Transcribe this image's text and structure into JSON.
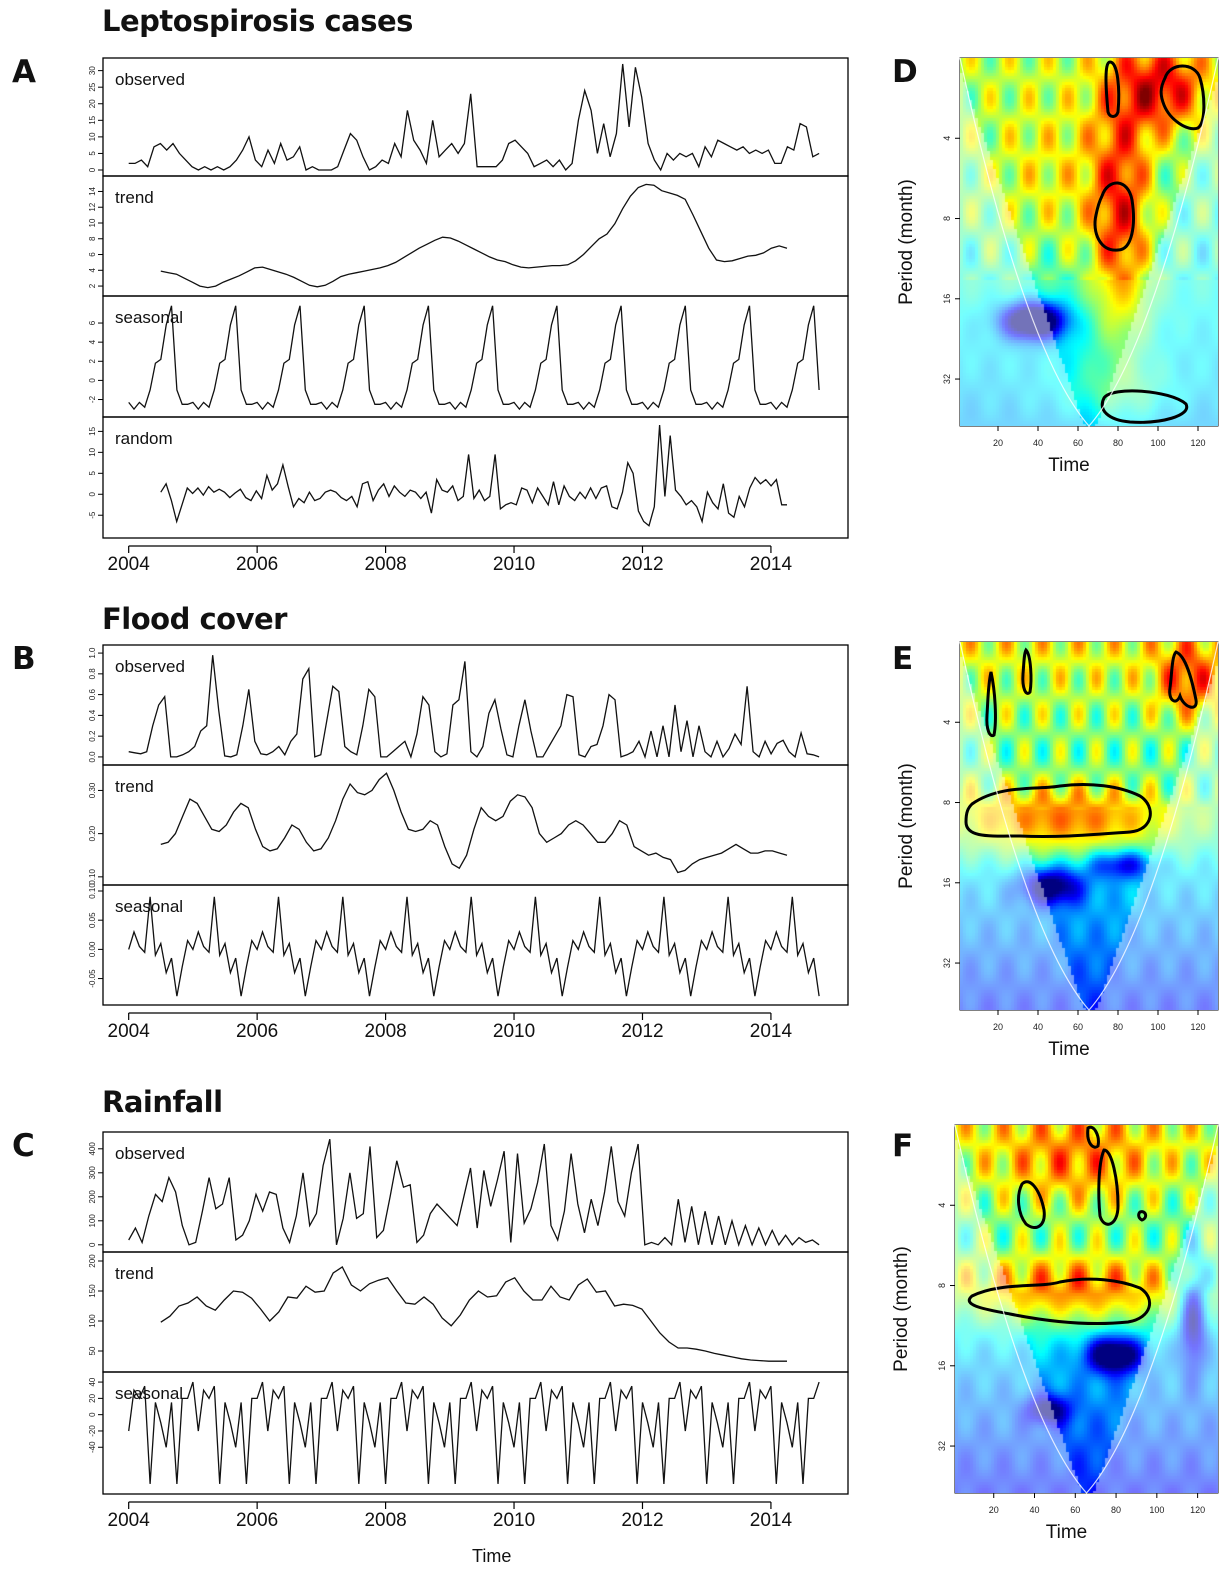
{
  "labels": {
    "A": "A",
    "B": "B",
    "C": "C",
    "D": "D",
    "E": "E",
    "F": "F"
  },
  "titles": {
    "A": "Leptospirosis cases",
    "B": "Flood cover",
    "C": "Rainfall"
  },
  "decomp_xlabel": "Time",
  "wavelet_axes": {
    "xlabel": "Time",
    "ylabel": "Period (month)"
  },
  "chart_data": [
    {
      "id": "A",
      "type": "line",
      "title": "Leptospirosis cases",
      "xlabel": "Time",
      "x_ticks": [
        "2004",
        "2006",
        "2008",
        "2010",
        "2012",
        "2014"
      ],
      "x_start": 2004.0,
      "x_end": 2014.75,
      "xlim": [
        2003.6,
        2015.2
      ],
      "panels": [
        {
          "name": "observed",
          "ylim": [
            0,
            32
          ],
          "y_ticks": [
            "0",
            "5",
            "10",
            "15",
            "20",
            "25",
            "30"
          ],
          "values": [
            2,
            2,
            3,
            1,
            7,
            8,
            6,
            8,
            5,
            3,
            1,
            0,
            1,
            0,
            1,
            0,
            1,
            3,
            6,
            10,
            3,
            1,
            6,
            2,
            8,
            3,
            4,
            7,
            0,
            1,
            0,
            0,
            0,
            1,
            6,
            11,
            9,
            4,
            0,
            1,
            3,
            2,
            8,
            4,
            18,
            9,
            6,
            2,
            15,
            4,
            6,
            8,
            5,
            8,
            23,
            1,
            1,
            1,
            1,
            3,
            8,
            9,
            7,
            5,
            1,
            2,
            3,
            1,
            3,
            0,
            2,
            15,
            24,
            18,
            5,
            14,
            4,
            11,
            32,
            13,
            31,
            22,
            8,
            3,
            0,
            5,
            3,
            5,
            4,
            5,
            1,
            7,
            4,
            9,
            8,
            7,
            6,
            7,
            5,
            6,
            5,
            6,
            2,
            2,
            7,
            6,
            14,
            13,
            4,
            5
          ]
        },
        {
          "name": "trend",
          "ylim": [
            1.5,
            15.2
          ],
          "y_ticks": [
            "2",
            "4",
            "6",
            "8",
            "10",
            "12",
            "14"
          ],
          "values": [
            3.9,
            3.7,
            3.5,
            3.0,
            2.5,
            2.0,
            1.8,
            2.0,
            2.5,
            2.9,
            3.3,
            3.8,
            4.3,
            4.4,
            4.1,
            3.8,
            3.5,
            3.1,
            2.6,
            2.1,
            1.9,
            2.1,
            2.6,
            3.2,
            3.5,
            3.7,
            3.9,
            4.1,
            4.3,
            4.6,
            5.0,
            5.6,
            6.2,
            6.8,
            7.3,
            7.8,
            8.2,
            8.1,
            7.7,
            7.2,
            6.7,
            6.2,
            5.7,
            5.3,
            5.1,
            4.7,
            4.4,
            4.3,
            4.4,
            4.5,
            4.6,
            4.6,
            4.7,
            5.2,
            6.0,
            7.0,
            8.0,
            8.6,
            9.9,
            11.8,
            13.4,
            14.5,
            14.9,
            14.8,
            14.1,
            13.8,
            13.5,
            13.0,
            11.0,
            8.9,
            6.8,
            5.3,
            5.1,
            5.2,
            5.5,
            5.8,
            5.9,
            6.2,
            6.8,
            7.1,
            6.8
          ]
        },
        {
          "name": "seasonal",
          "ylim": [
            -3.2,
            8.2
          ],
          "y_ticks": [
            "-2",
            "0",
            "2",
            "4",
            "6"
          ],
          "values": [
            -2.3,
            -3.0,
            -2.3,
            -2.8,
            -1.0,
            1.8,
            2.2,
            5.8,
            7.8,
            -1.0,
            -2.5,
            -2.5
          ]
        },
        {
          "name": "random",
          "ylim": [
            -9,
            17
          ],
          "y_ticks": [
            "-5",
            "0",
            "5",
            "10",
            "15"
          ],
          "values": [
            0.5,
            2.5,
            -1.5,
            -6.5,
            -2.5,
            1.5,
            0.2,
            1.5,
            -0.2,
            1.8,
            0.5,
            1.2,
            0.5,
            -0.8,
            0.3,
            1.2,
            -0.8,
            -1.5,
            0.8,
            -1.0,
            4.5,
            1.0,
            2.5,
            7.0,
            1.8,
            -3.0,
            -1.0,
            -2.0,
            0.5,
            -1.5,
            -1.0,
            0.5,
            1.0,
            0.5,
            -0.8,
            -1.5,
            -0.5,
            -3.0,
            2.5,
            3.0,
            -1.5,
            1.0,
            2.5,
            -0.5,
            2.0,
            0.5,
            -0.5,
            1.0,
            0.5,
            -1.0,
            0.5,
            -4.5,
            3.5,
            1.0,
            0.5,
            2.0,
            -1.5,
            -0.5,
            9.5,
            -1.0,
            1.0,
            -1.5,
            -0.5,
            9.5,
            -3.5,
            -2.5,
            -2.0,
            -2.5,
            1.5,
            1.0,
            -2.0,
            1.5,
            -0.5,
            -2.5,
            3.0,
            -2.5,
            2.0,
            -0.5,
            -1.5,
            0.5,
            -1.0,
            1.5,
            -1.0,
            1.5,
            2.0,
            -3.0,
            -3.5,
            0.5,
            7.5,
            5.0,
            -4.0,
            -6.5,
            -7.5,
            -3.0,
            16.5,
            -0.5,
            14.0,
            1.0,
            -0.5,
            -2.5,
            -1.5,
            -3.0,
            -6.5,
            0.5,
            -2.0,
            -3.5,
            2.5,
            -4.5,
            -5.5,
            -0.5,
            -3.0,
            1.5,
            4.0,
            2.5,
            3.5,
            2.0,
            3.5,
            -2.5,
            -2.5
          ]
        }
      ]
    },
    {
      "id": "B",
      "type": "line",
      "title": "Flood cover",
      "xlabel": "Time",
      "x_ticks": [
        "2004",
        "2006",
        "2008",
        "2010",
        "2012",
        "2014"
      ],
      "x_start": 2004.0,
      "x_end": 2014.75,
      "xlim": [
        2003.6,
        2015.2
      ],
      "panels": [
        {
          "name": "observed",
          "ylim": [
            -0.02,
            1.02
          ],
          "y_ticks": [
            "0.0",
            "0.2",
            "0.4",
            "0.6",
            "0.8",
            "1.0"
          ],
          "values": [
            0.05,
            0.04,
            0.03,
            0.05,
            0.3,
            0.5,
            0.58,
            0.0,
            0.0,
            0.02,
            0.05,
            0.1,
            0.25,
            0.3,
            0.98,
            0.45,
            0.01,
            0.0,
            0.02,
            0.3,
            0.65,
            0.15,
            0.03,
            0.02,
            0.05,
            0.1,
            0.02,
            0.15,
            0.22,
            0.75,
            0.85,
            0.0,
            0.02,
            0.35,
            0.68,
            0.63,
            0.1,
            0.05,
            0.02,
            0.3,
            0.65,
            0.58,
            0.0,
            0.0,
            0.05,
            0.1,
            0.15,
            0.0,
            0.22,
            0.58,
            0.5,
            0.05,
            0.0,
            0.03,
            0.5,
            0.55,
            0.92,
            0.05,
            0.0,
            0.1,
            0.42,
            0.55,
            0.27,
            0.02,
            0.0,
            0.3,
            0.55,
            0.25,
            0.0,
            0.0,
            0.1,
            0.2,
            0.3,
            0.6,
            0.58,
            0.02,
            0.0,
            0.1,
            0.12,
            0.3,
            0.6,
            0.55,
            0.0,
            0.02,
            0.05,
            0.15,
            0.0,
            0.25,
            0.0,
            0.3,
            0.0,
            0.5,
            0.05,
            0.35,
            0.0,
            0.3,
            0.05,
            0.0,
            0.15,
            0.0,
            0.08,
            0.22,
            0.12,
            0.68,
            0.05,
            0.0,
            0.15,
            0.03,
            0.13,
            0.16,
            0.05,
            0.0,
            0.23,
            0.03,
            0.02,
            0.0
          ]
        },
        {
          "name": "trend",
          "ylim": [
            0.095,
            0.345
          ],
          "y_ticks": [
            "0.10",
            "0.20",
            "0.30"
          ],
          "values": [
            0.175,
            0.18,
            0.2,
            0.24,
            0.28,
            0.27,
            0.24,
            0.21,
            0.205,
            0.22,
            0.25,
            0.27,
            0.26,
            0.21,
            0.17,
            0.16,
            0.165,
            0.19,
            0.22,
            0.21,
            0.18,
            0.16,
            0.165,
            0.19,
            0.23,
            0.28,
            0.315,
            0.295,
            0.29,
            0.3,
            0.325,
            0.34,
            0.3,
            0.25,
            0.21,
            0.205,
            0.21,
            0.23,
            0.22,
            0.17,
            0.13,
            0.12,
            0.15,
            0.21,
            0.26,
            0.24,
            0.23,
            0.24,
            0.275,
            0.29,
            0.285,
            0.26,
            0.2,
            0.18,
            0.19,
            0.2,
            0.22,
            0.23,
            0.22,
            0.2,
            0.18,
            0.18,
            0.2,
            0.23,
            0.22,
            0.17,
            0.16,
            0.15,
            0.155,
            0.145,
            0.14,
            0.11,
            0.115,
            0.13,
            0.14,
            0.145,
            0.15,
            0.155,
            0.165,
            0.175,
            0.165,
            0.155,
            0.155,
            0.16,
            0.16,
            0.155,
            0.15
          ]
        },
        {
          "name": "seasonal",
          "ylim": [
            -0.085,
            0.1
          ],
          "y_ticks": [
            "-0.05",
            "0.00",
            "0.05",
            "0.10"
          ],
          "values": [
            0.0,
            0.03,
            0.005,
            -0.005,
            0.09,
            -0.01,
            0.01,
            -0.04,
            -0.015,
            -0.08,
            -0.03,
            0.015
          ]
        }
      ]
    },
    {
      "id": "C",
      "type": "line",
      "title": "Rainfall",
      "xlabel": "Time",
      "x_ticks": [
        "2004",
        "2006",
        "2008",
        "2010",
        "2012",
        "2014"
      ],
      "x_start": 2004.0,
      "x_end": 2014.75,
      "xlim": [
        2003.6,
        2015.2
      ],
      "panels": [
        {
          "name": "observed",
          "ylim": [
            -5,
            445
          ],
          "y_ticks": [
            "0",
            "100",
            "200",
            "300",
            "400"
          ],
          "values": [
            20,
            70,
            10,
            120,
            210,
            180,
            280,
            220,
            80,
            0,
            10,
            140,
            280,
            150,
            170,
            280,
            20,
            40,
            100,
            210,
            140,
            220,
            210,
            70,
            10,
            120,
            300,
            80,
            130,
            330,
            440,
            0,
            110,
            300,
            110,
            130,
            410,
            30,
            60,
            200,
            350,
            240,
            250,
            10,
            40,
            130,
            170,
            140,
            110,
            80,
            200,
            320,
            70,
            310,
            160,
            270,
            390,
            10,
            380,
            90,
            150,
            260,
            420,
            80,
            20,
            140,
            380,
            170,
            50,
            190,
            80,
            220,
            410,
            180,
            120,
            300,
            420,
            0,
            10,
            0,
            30,
            0,
            190,
            10,
            160,
            0,
            140,
            0,
            120,
            0,
            100,
            0,
            80,
            0,
            70,
            0,
            60,
            0,
            40,
            0,
            30,
            10,
            20,
            0
          ]
        },
        {
          "name": "trend",
          "ylim": [
            25,
            205
          ],
          "y_ticks": [
            "50",
            "100",
            "150",
            "200"
          ],
          "values": [
            98,
            108,
            125,
            130,
            140,
            125,
            118,
            135,
            150,
            148,
            138,
            120,
            100,
            115,
            140,
            138,
            158,
            148,
            150,
            180,
            190,
            160,
            150,
            162,
            168,
            172,
            150,
            130,
            128,
            140,
            128,
            105,
            92,
            110,
            135,
            150,
            140,
            142,
            165,
            172,
            150,
            135,
            135,
            158,
            140,
            135,
            160,
            170,
            148,
            150,
            125,
            128,
            126,
            120,
            100,
            80,
            65,
            55,
            55,
            53,
            50,
            46,
            43,
            40,
            37,
            35,
            34,
            33,
            33,
            33
          ]
        },
        {
          "name": "seasonal",
          "ylim": [
            -90,
            45
          ],
          "y_ticks": [
            "-40",
            "-20",
            "0",
            "20",
            "40"
          ],
          "values": [
            -20,
            30,
            20,
            35,
            -85,
            15,
            -10,
            -40,
            15,
            -85,
            20,
            20,
            40
          ]
        }
      ]
    },
    {
      "id": "D",
      "type": "heatmap",
      "xlabel": "Time",
      "ylabel": "Period (month)",
      "x_ticks": [
        "20",
        "40",
        "60",
        "80",
        "100",
        "120"
      ],
      "y_ticks": [
        "4",
        "8",
        "16",
        "32"
      ],
      "xlim": [
        1,
        130
      ],
      "ylim_period": [
        2,
        48
      ]
    },
    {
      "id": "E",
      "type": "heatmap",
      "xlabel": "Time",
      "ylabel": "Period (month)",
      "x_ticks": [
        "20",
        "40",
        "60",
        "80",
        "100",
        "120"
      ],
      "y_ticks": [
        "4",
        "8",
        "16",
        "32"
      ],
      "xlim": [
        1,
        130
      ],
      "ylim_period": [
        2,
        48
      ]
    },
    {
      "id": "F",
      "type": "heatmap",
      "xlabel": "Time",
      "ylabel": "Period (month)",
      "x_ticks": [
        "20",
        "40",
        "60",
        "80",
        "100",
        "120"
      ],
      "y_ticks": [
        "4",
        "8",
        "16",
        "32"
      ],
      "xlim": [
        1,
        130
      ],
      "ylim_period": [
        2,
        48
      ]
    }
  ]
}
